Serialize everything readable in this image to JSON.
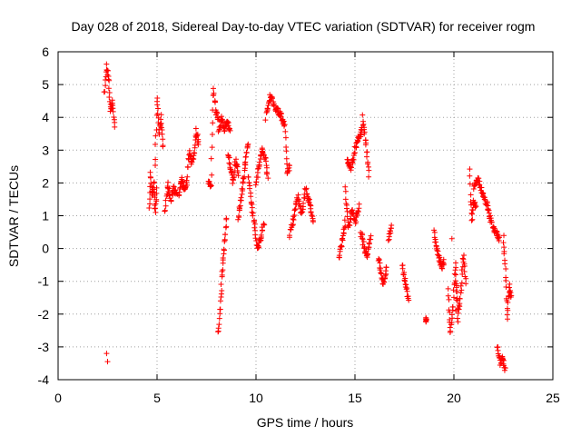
{
  "chart_data": {
    "type": "scatter",
    "title": "Day 028 of 2018, Sidereal Day-to-day VTEC variation (SDTVAR) for receiver rogm",
    "xlabel": "GPS time / hours",
    "ylabel": "SDTVAR / TECUs",
    "xlim": [
      0,
      25
    ],
    "ylim": [
      -4,
      6
    ],
    "xticks": [
      0,
      5,
      10,
      15,
      20,
      25
    ],
    "yticks": [
      -4,
      -3,
      -2,
      -1,
      0,
      1,
      2,
      3,
      4,
      5,
      6
    ],
    "xtick_labels": [
      "0",
      "5",
      "10",
      "15",
      "20",
      "25"
    ],
    "ytick_labels": [
      "-4",
      "-3",
      "-2",
      "-1",
      "0",
      "1",
      "2",
      "3",
      "4",
      "5",
      "6"
    ],
    "grid": true,
    "marker": "plus",
    "color": "#ff0000",
    "series": [
      {
        "name": "SDTVAR",
        "segments": [
          [
            2.35,
            2.85,
            [
              4.7,
              5.6,
              5.1,
              4.2,
              4.5,
              3.7
            ]
          ],
          [
            4.6,
            5.0,
            [
              1.2,
              2.3,
              1.5,
              2.1,
              1.0,
              1.8
            ]
          ],
          [
            4.9,
            5.3,
            [
              2.5,
              4.6,
              3.5,
              4.0,
              3.1
            ]
          ],
          [
            5.4,
            6.0,
            [
              1.1,
              2.0,
              1.4,
              1.9,
              1.6
            ]
          ],
          [
            6.1,
            6.5,
            [
              1.6,
              2.1,
              1.8,
              2.0
            ]
          ],
          [
            6.5,
            7.1,
            [
              2.0,
              3.0,
              2.6,
              2.9,
              3.6,
              3.2
            ]
          ],
          [
            7.6,
            8.1,
            [
              2.1,
              1.8,
              4.9,
              4.2,
              3.9
            ]
          ],
          [
            8.1,
            8.7,
            [
              3.5,
              4.0,
              3.6,
              3.9,
              3.6
            ]
          ],
          [
            8.1,
            8.5,
            [
              -2.6,
              -1.9,
              -1.0,
              -0.3,
              0.3,
              0.9
            ]
          ],
          [
            8.6,
            9.1,
            [
              2.9,
              2.4,
              2.0,
              2.7,
              2.3
            ]
          ],
          [
            9.1,
            9.6,
            [
              0.9,
              1.3,
              1.8,
              2.3,
              2.8,
              3.2
            ]
          ],
          [
            9.6,
            10.4,
            [
              2.2,
              1.4,
              0.7,
              0.0,
              0.3,
              0.8
            ]
          ],
          [
            10.0,
            10.6,
            [
              2.0,
              2.5,
              3.0,
              2.8,
              2.2
            ]
          ],
          [
            10.5,
            11.2,
            [
              4.0,
              4.7,
              4.3,
              4.1
            ]
          ],
          [
            11.2,
            11.7,
            [
              4.2,
              3.9,
              3.8,
              2.3,
              2.5
            ]
          ],
          [
            11.7,
            12.9,
            [
              0.4,
              0.9,
              1.6,
              1.0,
              1.8,
              1.4,
              0.8
            ]
          ],
          [
            14.2,
            14.5,
            [
              -0.3,
              0.2,
              0.8
            ]
          ],
          [
            14.5,
            15.2,
            [
              1.8,
              0.6,
              1.2,
              0.8,
              1.3
            ]
          ],
          [
            14.6,
            15.4,
            [
              2.7,
              2.4,
              3.0,
              3.4,
              3.7
            ]
          ],
          [
            15.4,
            15.7,
            [
              4.0,
              3.2,
              2.2
            ]
          ],
          [
            15.3,
            15.8,
            [
              0.5,
              0.0,
              -0.2,
              0.4
            ]
          ],
          [
            16.2,
            16.6,
            [
              -0.3,
              -0.8,
              -1.1,
              -0.5
            ]
          ],
          [
            16.7,
            16.85,
            [
              0.3,
              0.7
            ]
          ],
          [
            17.4,
            17.7,
            [
              -0.5,
              -1.1,
              -1.6
            ]
          ],
          [
            18.6,
            18.6,
            [
              -2.15
            ]
          ],
          [
            19.0,
            19.5,
            [
              0.5,
              0.0,
              -0.3,
              -0.6,
              -0.4
            ]
          ],
          [
            19.7,
            20.2,
            [
              -1.3,
              -2.6,
              -1.8,
              -0.4,
              -2.3
            ]
          ],
          [
            20.1,
            20.6,
            [
              -0.9,
              -2.0,
              -1.4,
              -0.2,
              -1.0
            ]
          ],
          [
            20.8,
            21.1,
            [
              2.4,
              0.8,
              1.5,
              1.2
            ]
          ],
          [
            21.0,
            21.7,
            [
              1.9,
              2.1,
              1.6,
              1.3
            ]
          ],
          [
            21.7,
            22.3,
            [
              1.2,
              0.8,
              0.5,
              0.3
            ]
          ],
          [
            22.2,
            22.6,
            [
              -3.0,
              -3.5,
              -3.3,
              -3.7
            ]
          ],
          [
            22.5,
            22.9,
            [
              0.4,
              -0.6,
              -2.1,
              -1.1,
              -1.5
            ]
          ]
        ],
        "outliers": [
          [
            2.45,
            -3.2
          ],
          [
            2.5,
            -3.45
          ],
          [
            19.9,
            0.3
          ],
          [
            20.1,
            -1.9
          ]
        ]
      }
    ]
  }
}
